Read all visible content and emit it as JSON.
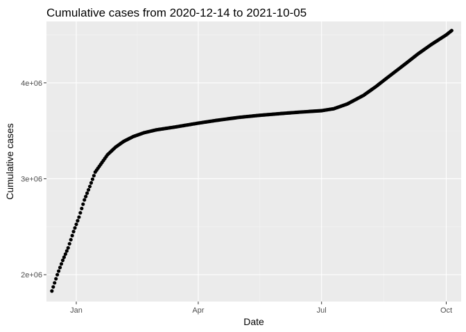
{
  "chart_data": {
    "type": "scatter",
    "title": "Cumulative cases from 2020-12-14 to 2021-10-05",
    "xlabel": "Date",
    "ylabel": "Cumulative cases",
    "x_range": [
      "2020-12-10",
      "2021-10-12"
    ],
    "ylim": [
      1720000,
      4640000
    ],
    "x_ticks": [
      {
        "date": "2021-01-01",
        "label": "Jan"
      },
      {
        "date": "2021-04-01",
        "label": "Apr"
      },
      {
        "date": "2021-07-01",
        "label": "Jul"
      },
      {
        "date": "2021-10-01",
        "label": "Oct"
      }
    ],
    "y_ticks": [
      {
        "value": 2000000,
        "label": "2e+06"
      },
      {
        "value": 3000000,
        "label": "3e+06"
      },
      {
        "value": 4000000,
        "label": "4e+06"
      }
    ],
    "grid": true,
    "series": [
      {
        "color": "#000000",
        "points": [
          {
            "x": "2020-12-14",
            "y": 1830000
          },
          {
            "x": "2020-12-18",
            "y": 2000000
          },
          {
            "x": "2020-12-22",
            "y": 2150000
          },
          {
            "x": "2020-12-26",
            "y": 2280000
          },
          {
            "x": "2020-12-30",
            "y": 2450000
          },
          {
            "x": "2021-01-03",
            "y": 2600000
          },
          {
            "x": "2021-01-07",
            "y": 2780000
          },
          {
            "x": "2021-01-11",
            "y": 2920000
          },
          {
            "x": "2021-01-15",
            "y": 3070000
          },
          {
            "x": "2021-01-19",
            "y": 3150000
          },
          {
            "x": "2021-01-24",
            "y": 3250000
          },
          {
            "x": "2021-01-30",
            "y": 3330000
          },
          {
            "x": "2021-02-05",
            "y": 3390000
          },
          {
            "x": "2021-02-12",
            "y": 3440000
          },
          {
            "x": "2021-02-20",
            "y": 3480000
          },
          {
            "x": "2021-03-01",
            "y": 3510000
          },
          {
            "x": "2021-03-15",
            "y": 3540000
          },
          {
            "x": "2021-04-01",
            "y": 3580000
          },
          {
            "x": "2021-04-15",
            "y": 3610000
          },
          {
            "x": "2021-05-01",
            "y": 3640000
          },
          {
            "x": "2021-05-15",
            "y": 3660000
          },
          {
            "x": "2021-06-01",
            "y": 3680000
          },
          {
            "x": "2021-06-15",
            "y": 3695000
          },
          {
            "x": "2021-07-01",
            "y": 3710000
          },
          {
            "x": "2021-07-10",
            "y": 3730000
          },
          {
            "x": "2021-07-20",
            "y": 3780000
          },
          {
            "x": "2021-08-01",
            "y": 3870000
          },
          {
            "x": "2021-08-10",
            "y": 3960000
          },
          {
            "x": "2021-08-20",
            "y": 4070000
          },
          {
            "x": "2021-09-01",
            "y": 4200000
          },
          {
            "x": "2021-09-10",
            "y": 4300000
          },
          {
            "x": "2021-09-20",
            "y": 4400000
          },
          {
            "x": "2021-10-01",
            "y": 4500000
          },
          {
            "x": "2021-10-05",
            "y": 4545000
          }
        ]
      }
    ]
  }
}
